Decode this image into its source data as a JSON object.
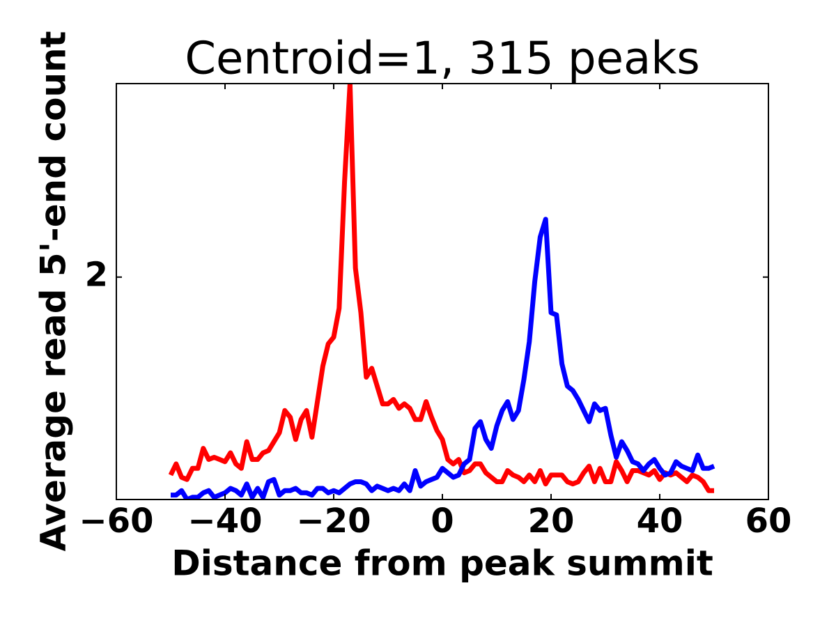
{
  "chart_data": {
    "type": "line",
    "title": "Centroid=1, 315 peaks",
    "xlabel": "Distance from peak summit",
    "ylabel": "Average read 5'-end count",
    "x": [
      -50,
      -49,
      -48,
      -47,
      -46,
      -45,
      -44,
      -43,
      -42,
      -41,
      -40,
      -39,
      -38,
      -37,
      -36,
      -35,
      -34,
      -33,
      -32,
      -31,
      -30,
      -29,
      -28,
      -27,
      -26,
      -25,
      -24,
      -23,
      -22,
      -21,
      -20,
      -19,
      -18,
      -17,
      -16,
      -15,
      -14,
      -13,
      -12,
      -11,
      -10,
      -9,
      -8,
      -7,
      -6,
      -5,
      -4,
      -3,
      -2,
      -1,
      0,
      1,
      2,
      3,
      4,
      5,
      6,
      7,
      8,
      9,
      10,
      11,
      12,
      13,
      14,
      15,
      16,
      17,
      18,
      19,
      20,
      21,
      22,
      23,
      24,
      25,
      26,
      27,
      28,
      29,
      30,
      31,
      32,
      33,
      34,
      35,
      36,
      37,
      38,
      39,
      40,
      41,
      42,
      43,
      44,
      45,
      46,
      47,
      48,
      49,
      50
    ],
    "series": [
      {
        "color": "#ff0000",
        "values": [
          1.11,
          1.16,
          1.1,
          1.09,
          1.14,
          1.14,
          1.23,
          1.18,
          1.19,
          1.18,
          1.17,
          1.21,
          1.16,
          1.14,
          1.26,
          1.18,
          1.18,
          1.21,
          1.22,
          1.26,
          1.3,
          1.4,
          1.37,
          1.27,
          1.36,
          1.4,
          1.28,
          1.44,
          1.6,
          1.7,
          1.73,
          1.86,
          2.43,
          2.87,
          2.04,
          1.84,
          1.55,
          1.59,
          1.51,
          1.43,
          1.43,
          1.45,
          1.41,
          1.43,
          1.41,
          1.36,
          1.36,
          1.44,
          1.37,
          1.31,
          1.27,
          1.18,
          1.16,
          1.18,
          1.12,
          1.13,
          1.16,
          1.16,
          1.12,
          1.1,
          1.08,
          1.08,
          1.13,
          1.11,
          1.1,
          1.08,
          1.11,
          1.08,
          1.13,
          1.07,
          1.11,
          1.11,
          1.11,
          1.08,
          1.07,
          1.08,
          1.12,
          1.15,
          1.08,
          1.14,
          1.08,
          1.08,
          1.17,
          1.13,
          1.08,
          1.13,
          1.13,
          1.12,
          1.11,
          1.13,
          1.09,
          1.12,
          1.11,
          1.12,
          1.1,
          1.08,
          1.11,
          1.1,
          1.08,
          1.04,
          1.04
        ]
      },
      {
        "color": "#0000ff",
        "values": [
          1.02,
          1.02,
          1.04,
          1.0,
          1.01,
          1.01,
          1.03,
          1.04,
          1.01,
          1.02,
          1.03,
          1.05,
          1.04,
          1.02,
          1.07,
          1.01,
          1.05,
          1.01,
          1.08,
          1.09,
          1.02,
          1.04,
          1.04,
          1.05,
          1.03,
          1.03,
          1.02,
          1.05,
          1.05,
          1.03,
          1.04,
          1.03,
          1.05,
          1.07,
          1.08,
          1.08,
          1.07,
          1.04,
          1.06,
          1.05,
          1.04,
          1.05,
          1.04,
          1.07,
          1.04,
          1.13,
          1.06,
          1.08,
          1.09,
          1.1,
          1.14,
          1.12,
          1.1,
          1.11,
          1.16,
          1.18,
          1.32,
          1.35,
          1.27,
          1.23,
          1.33,
          1.4,
          1.44,
          1.36,
          1.4,
          1.54,
          1.71,
          1.98,
          2.18,
          2.26,
          1.84,
          1.83,
          1.61,
          1.51,
          1.49,
          1.45,
          1.4,
          1.35,
          1.43,
          1.4,
          1.41,
          1.29,
          1.19,
          1.26,
          1.22,
          1.17,
          1.16,
          1.13,
          1.16,
          1.18,
          1.14,
          1.11,
          1.12,
          1.17,
          1.15,
          1.14,
          1.13,
          1.2,
          1.14,
          1.14,
          1.15
        ]
      }
    ],
    "xlim": [
      -60,
      60
    ],
    "xticks": [
      {
        "value": -60,
        "label": "−60"
      },
      {
        "value": -40,
        "label": "−40"
      },
      {
        "value": -20,
        "label": "−20"
      },
      0,
      20,
      40,
      60
    ],
    "ylim": [
      1.0,
      2.87
    ],
    "yticks": [
      2
    ]
  }
}
